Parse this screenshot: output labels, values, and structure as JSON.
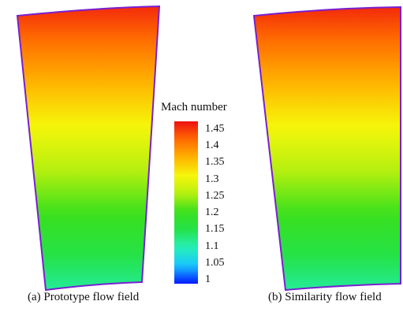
{
  "colorbar": {
    "title": "Mach number",
    "ticks": [
      "1.45",
      "1.4",
      "1.35",
      "1.3",
      "1.25",
      "1.2",
      "1.15",
      "1.1",
      "1.05",
      "1"
    ],
    "min": 1.0,
    "max": 1.475,
    "colors": [
      "#0018ff",
      "#19c6ff",
      "#26f0b8",
      "#24e24a",
      "#39e01d",
      "#b7f00f",
      "#f6f60a",
      "#ffb300",
      "#ff6a00",
      "#ee1010"
    ]
  },
  "panels": [
    {
      "caption": "(a) Prototype flow field",
      "mach_top": 1.46,
      "mach_bottom": 1.12
    },
    {
      "caption": "(b) Similarity flow field",
      "mach_top": 1.46,
      "mach_bottom": 1.12
    }
  ],
  "outline_color": "#7a1fd0"
}
